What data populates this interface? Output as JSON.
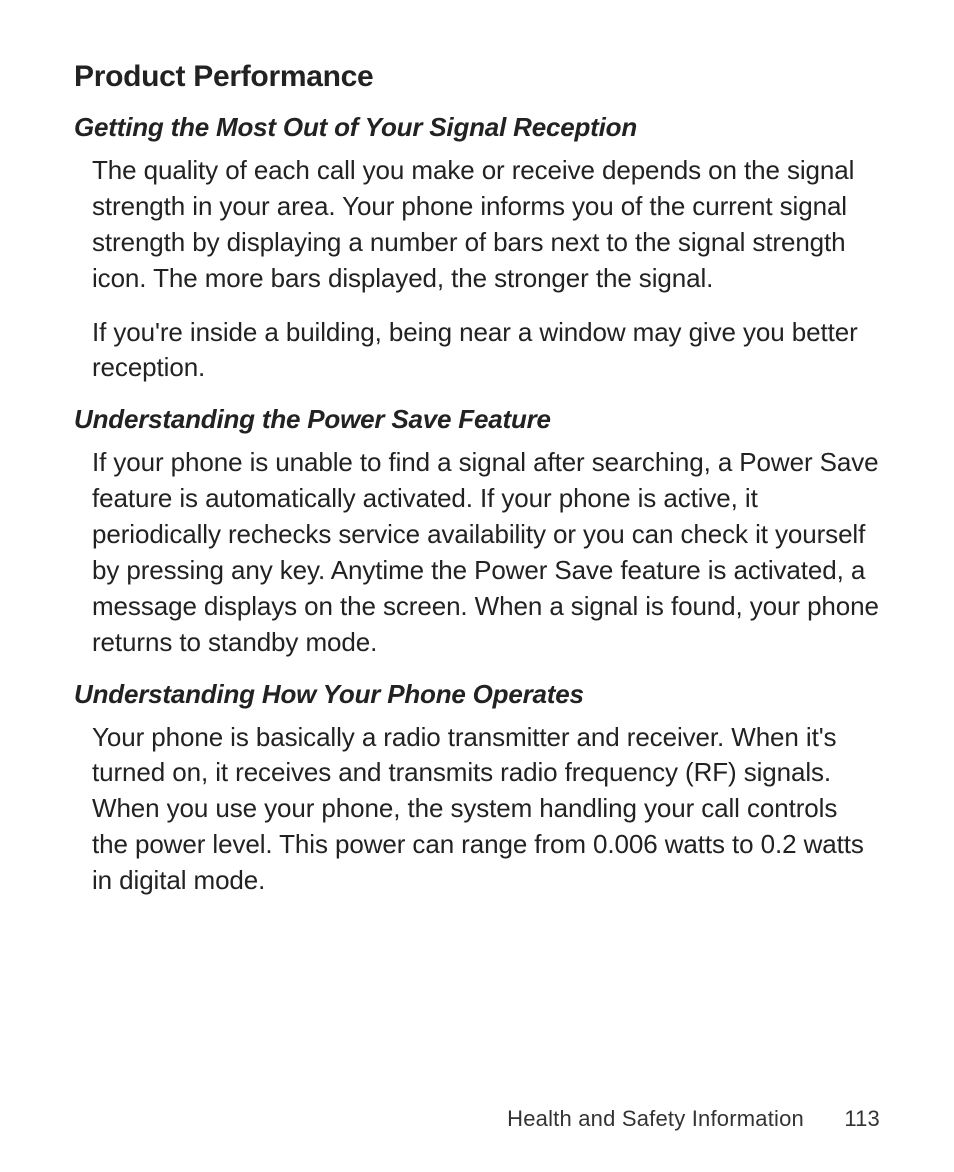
{
  "typography": {
    "h1_fontsize": 30,
    "h1_fontweight": 800,
    "h2_fontsize": 26,
    "h2_fontweight": 700,
    "h2_italic": true,
    "body_fontsize": 26,
    "body_lineheight": 1.38,
    "footer_fontsize": 22,
    "text_color": "#222222",
    "background_color": "#ffffff"
  },
  "heading": "Product Performance",
  "sections": {
    "s0": {
      "title": "Getting the Most Out of Your Signal Reception",
      "p0": "The quality of each call you make or receive depends on the signal strength in your area. Your phone informs you of the current signal strength by displaying a number of bars next to the signal strength icon. The more bars displayed, the stronger the signal.",
      "p1": "If you're inside a building, being near a window may give you better reception."
    },
    "s1": {
      "title": "Understanding the Power Save Feature",
      "p0": "If your phone is unable to find a signal after searching, a Power Save feature is automatically activated. If your phone is active, it periodically rechecks service availability or you can check it yourself by pressing any key. Anytime the Power Save feature is activated, a message displays on the screen. When a signal is found, your phone returns to standby mode."
    },
    "s2": {
      "title": "Understanding How Your Phone Operates",
      "p0": "Your phone is basically a radio transmitter and receiver. When it's turned on, it receives and transmits radio frequency (RF) signals. When you use your phone, the system handling your call controls the power level. This power can range from 0.006 watts to 0.2 watts in digital mode."
    }
  },
  "footer": {
    "section_label": "Health and Safety Information",
    "page_number": "113"
  }
}
